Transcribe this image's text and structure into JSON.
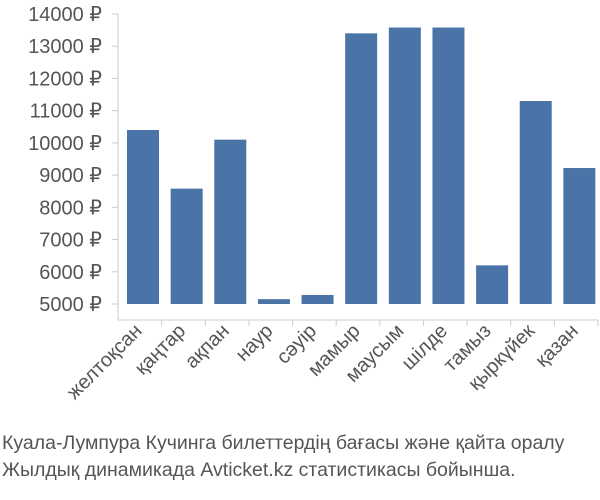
{
  "chart_data": {
    "type": "bar",
    "categories": [
      "желтоқсан",
      "қаңтар",
      "ақпан",
      "наур",
      "сәуір",
      "мамыр",
      "маусым",
      "шілде",
      "тамыз",
      "қыркүйек",
      "қазан"
    ],
    "values": [
      10400,
      8580,
      10100,
      5150,
      5280,
      13400,
      13580,
      13580,
      6200,
      11300,
      9220
    ],
    "ylim": [
      5000,
      14000
    ],
    "yticks": [
      5000,
      6000,
      7000,
      8000,
      9000,
      10000,
      11000,
      12000,
      13000,
      14000
    ],
    "ytick_suffix": " ₽",
    "title": "",
    "xlabel": "",
    "ylabel": "",
    "grid": false,
    "bar_color": "#4a74a7",
    "caption_lines": [
      "Куала-Лумпура Кучинга билеттердің бағасы және қайта оралу",
      "Жылдық динамикада Avticket.kz статистикасы бойынша."
    ]
  }
}
